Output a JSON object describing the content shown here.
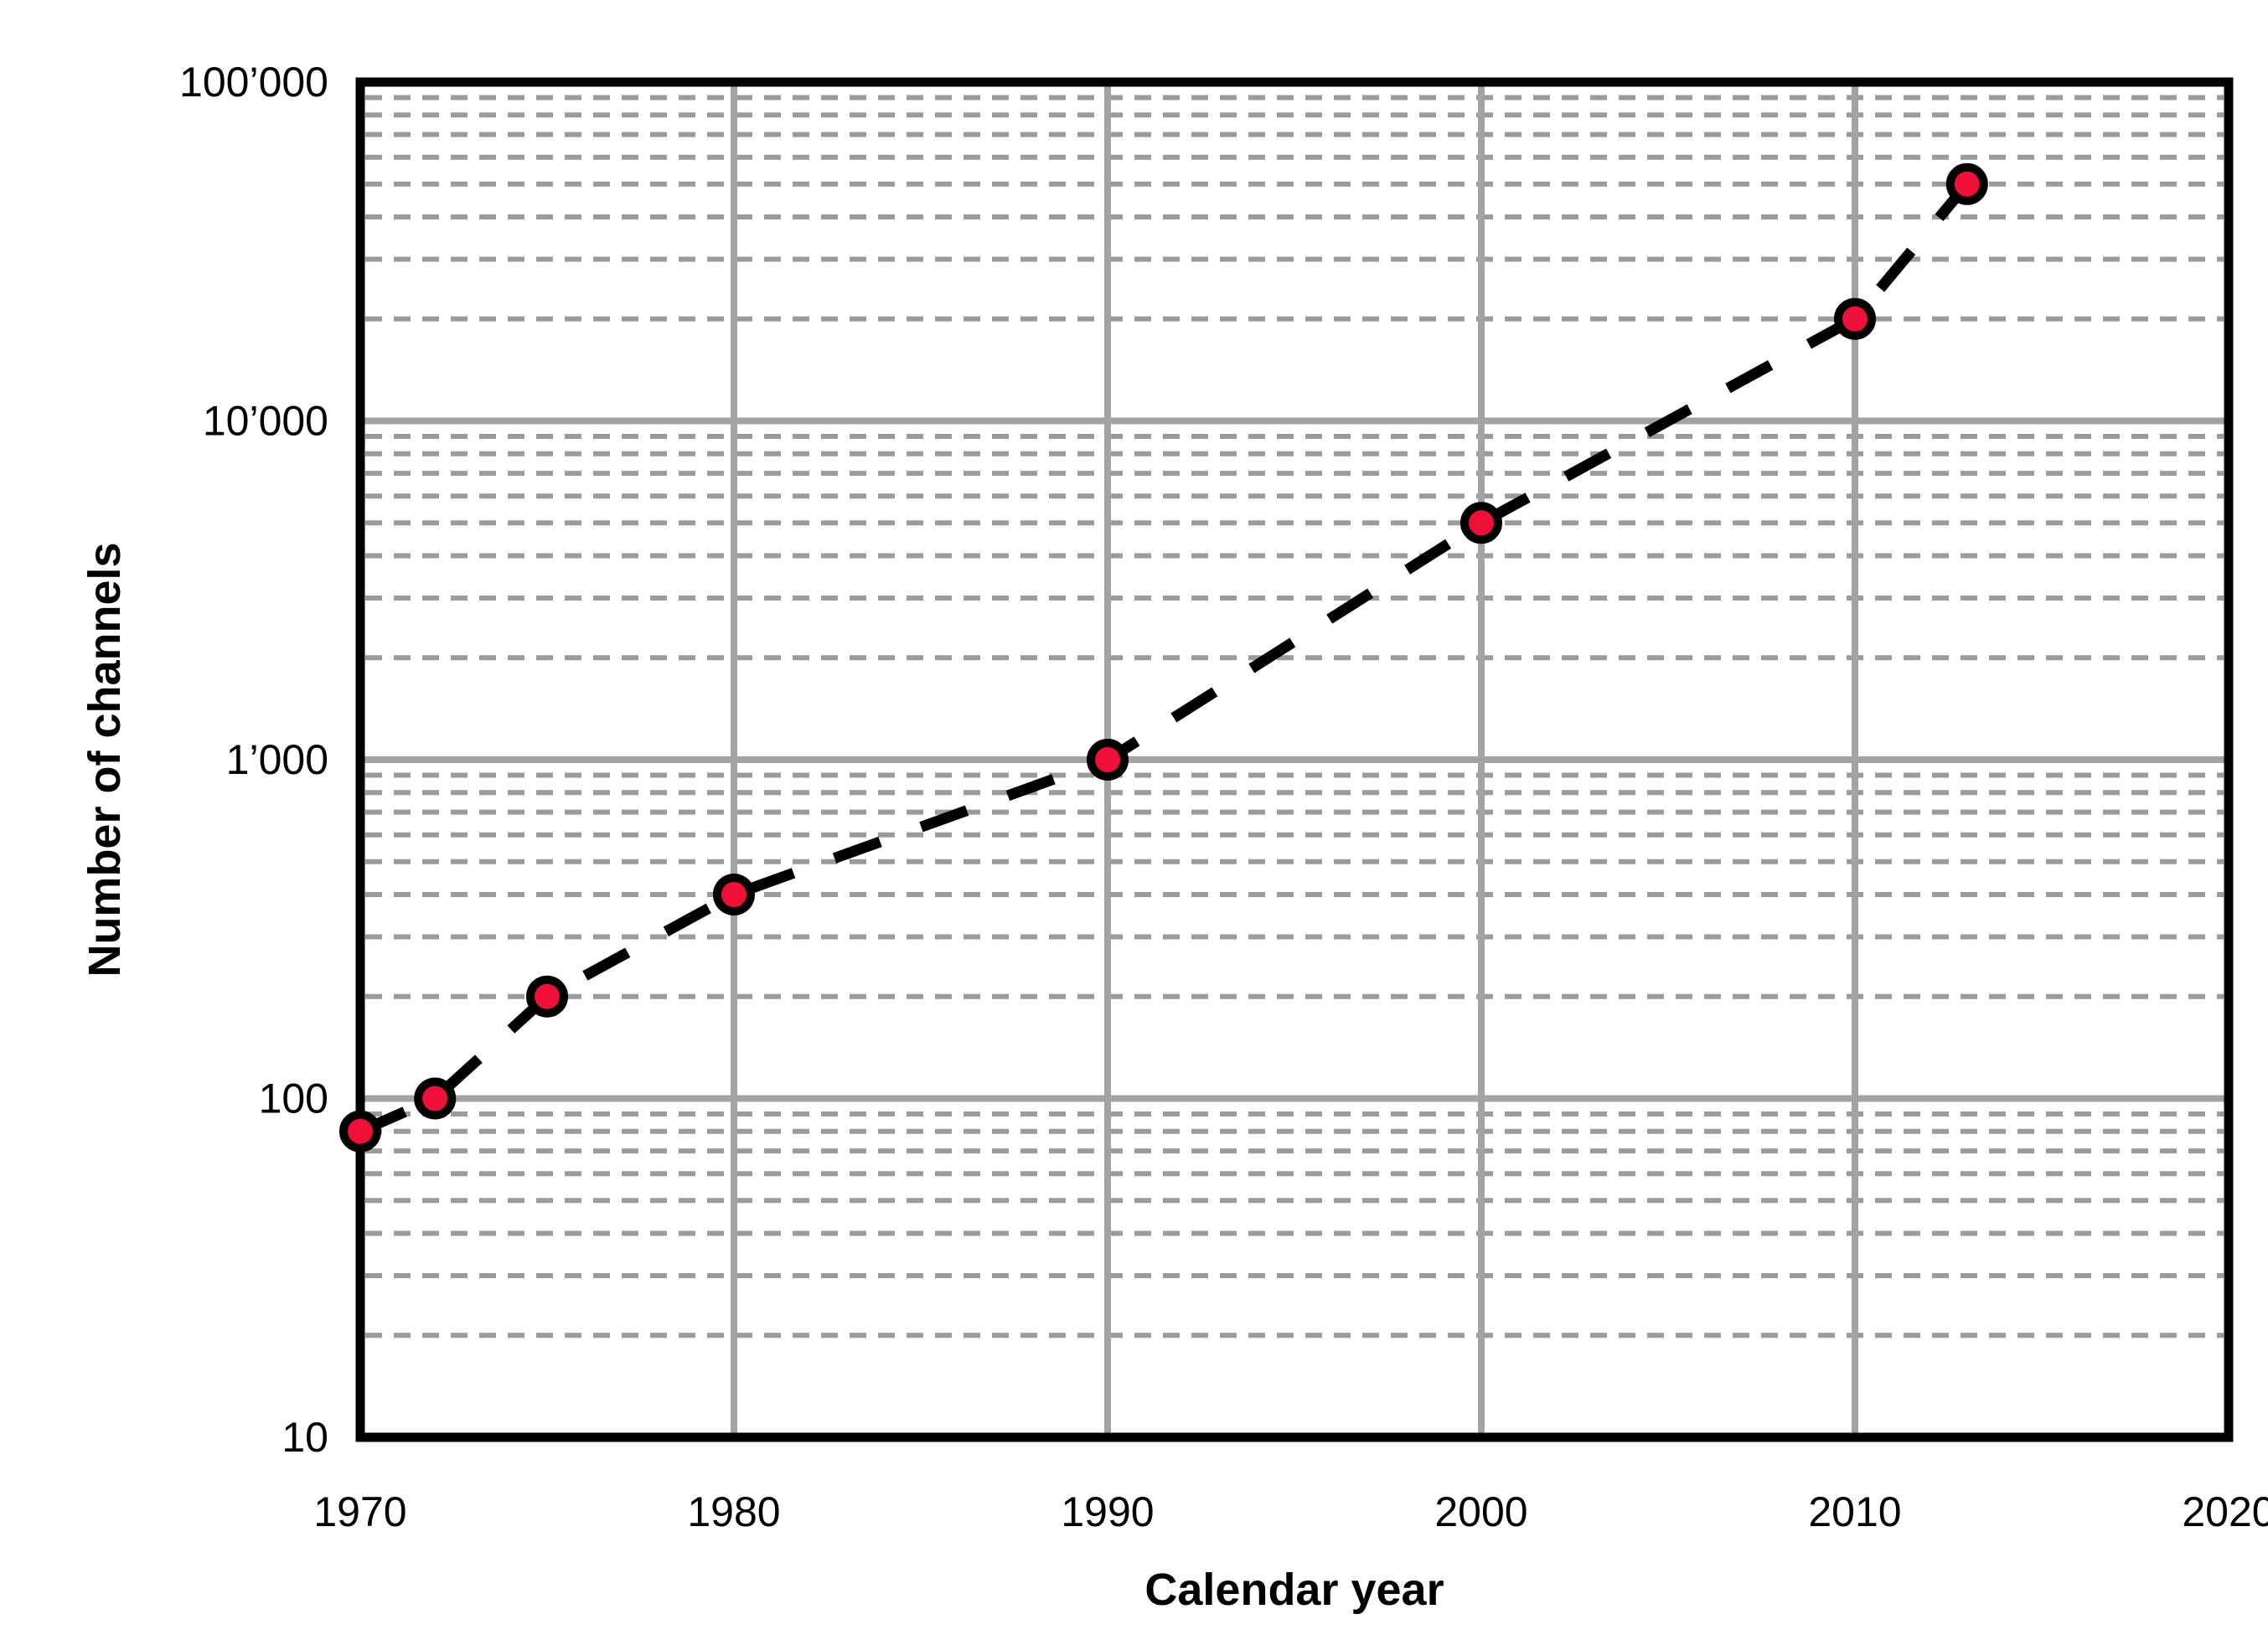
{
  "chart_data": {
    "type": "scatter",
    "title": "",
    "xlabel": "Calendar year",
    "ylabel": "Number of channels",
    "x_scale": "linear",
    "y_scale": "log",
    "xlim": [
      1970,
      2020
    ],
    "ylim": [
      10,
      100000
    ],
    "x_tick_values": [
      1970,
      1980,
      1990,
      2000,
      2010,
      2020
    ],
    "x_tick_labels": [
      "1970",
      "1980",
      "1990",
      "2000",
      "2010",
      "2020"
    ],
    "y_tick_values": [
      10,
      100,
      1000,
      10000,
      100000
    ],
    "y_tick_labels": [
      "10",
      "100",
      "1’000",
      "10’000",
      "100’000"
    ],
    "grid": {
      "major_horizontal_values": [
        100,
        1000,
        10000
      ],
      "major_vertical_values": [
        1980,
        1990,
        2000,
        2010
      ],
      "minor_horizontal": "dashed lines at 2-9 multiples of each decade",
      "minor_multipliers": [
        2,
        3,
        4,
        5,
        6,
        7,
        8,
        9
      ]
    },
    "legend": "none",
    "series": [
      {
        "name": "Number of channels",
        "marker": "circle",
        "line_style": "dashed",
        "x": [
          1970,
          1972,
          1975,
          1980,
          1990,
          2000,
          2010,
          2013
        ],
        "y": [
          80,
          100,
          200,
          400,
          1000,
          5000,
          20000,
          50000
        ]
      }
    ],
    "colors": {
      "marker_fill": "#EE1038",
      "marker_stroke": "#000000",
      "data_line": "#000000",
      "grid_major": "#A3A3A3",
      "grid_minor": "#9B9B9B",
      "plot_border": "#000000",
      "text": "#000000",
      "background": "#FFFFFF"
    }
  }
}
